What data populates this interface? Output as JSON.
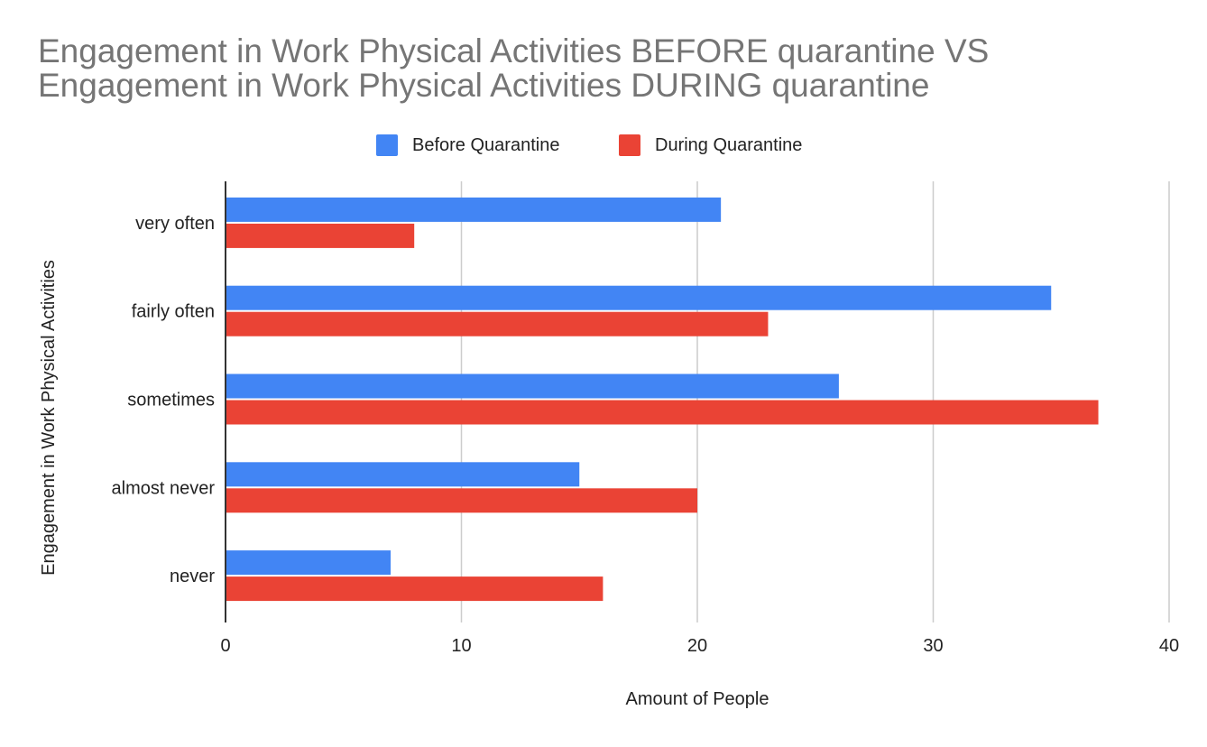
{
  "chart_data": {
    "type": "bar",
    "orientation": "horizontal",
    "title_lines": [
      "Engagement in Work Physical Activities BEFORE quarantine VS",
      "Engagement in Work Physical Activities DURING quarantine"
    ],
    "xlabel": "Amount of People",
    "ylabel": "Engagement in Work Physical Activities",
    "categories": [
      "very often",
      "fairly often",
      "sometimes",
      "almost never",
      "never"
    ],
    "series": [
      {
        "name": "Before Quarantine",
        "color": "#4285F4",
        "values": [
          21,
          35,
          26,
          15,
          7
        ]
      },
      {
        "name": "During Quarantine",
        "color": "#EA4335",
        "values": [
          8,
          23,
          37,
          20,
          16
        ]
      }
    ],
    "xlim": [
      0,
      40
    ],
    "xticks": [
      0,
      10,
      20,
      30,
      40
    ],
    "grid": true,
    "legend_position": "top-center"
  }
}
